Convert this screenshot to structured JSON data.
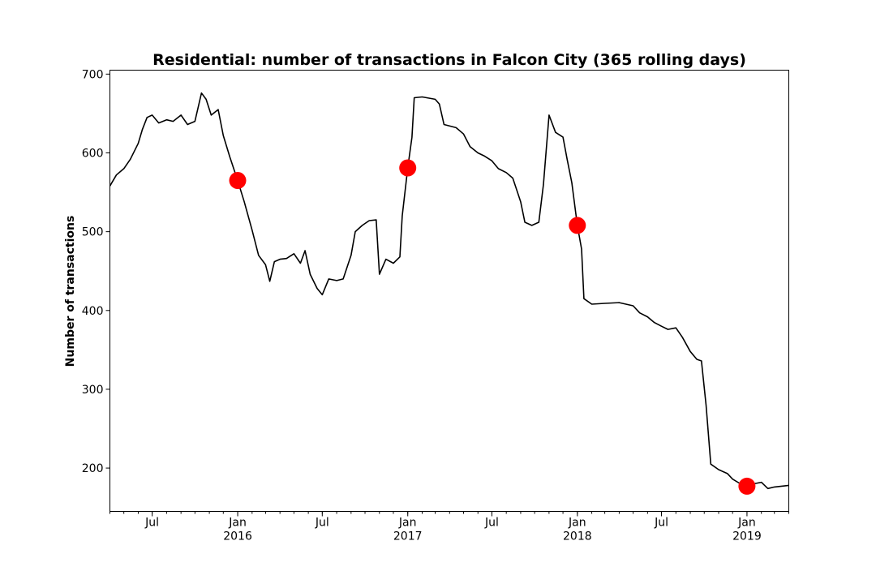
{
  "chart_data": {
    "type": "line",
    "title": "Residential: number of transactions in Falcon City (365 rolling days)",
    "xlabel": "",
    "ylabel": "Number of transactions",
    "xlim": [
      "2015-04-01",
      "2019-04-01"
    ],
    "ylim": [
      145,
      705
    ],
    "yticks": [
      200,
      300,
      400,
      500,
      600,
      700
    ],
    "xticks_major": [
      {
        "date": "2015-07-01",
        "label": "Jul",
        "year": ""
      },
      {
        "date": "2016-01-01",
        "label": "Jan",
        "year": "2016"
      },
      {
        "date": "2016-07-01",
        "label": "Jul",
        "year": ""
      },
      {
        "date": "2017-01-01",
        "label": "Jan",
        "year": "2017"
      },
      {
        "date": "2017-07-01",
        "label": "Jul",
        "year": ""
      },
      {
        "date": "2018-01-01",
        "label": "Jan",
        "year": "2018"
      },
      {
        "date": "2018-07-01",
        "label": "Jul",
        "year": ""
      },
      {
        "date": "2019-01-01",
        "label": "Jan",
        "year": "2019"
      }
    ],
    "grid": false,
    "series": [
      {
        "color": "#000000",
        "points": [
          [
            "2015-04-01",
            558
          ],
          [
            "2015-04-15",
            572
          ],
          [
            "2015-05-01",
            580
          ],
          [
            "2015-05-15",
            592
          ],
          [
            "2015-06-01",
            612
          ],
          [
            "2015-06-10",
            630
          ],
          [
            "2015-06-20",
            645
          ],
          [
            "2015-07-01",
            648
          ],
          [
            "2015-07-15",
            638
          ],
          [
            "2015-08-01",
            642
          ],
          [
            "2015-08-15",
            640
          ],
          [
            "2015-09-01",
            648
          ],
          [
            "2015-09-15",
            636
          ],
          [
            "2015-10-01",
            640
          ],
          [
            "2015-10-15",
            676
          ],
          [
            "2015-10-25",
            668
          ],
          [
            "2015-11-05",
            648
          ],
          [
            "2015-11-20",
            655
          ],
          [
            "2015-12-01",
            622
          ],
          [
            "2015-12-15",
            595
          ],
          [
            "2016-01-01",
            565
          ],
          [
            "2016-01-15",
            538
          ],
          [
            "2016-02-01",
            502
          ],
          [
            "2016-02-15",
            470
          ],
          [
            "2016-03-01",
            458
          ],
          [
            "2016-03-10",
            437
          ],
          [
            "2016-03-20",
            462
          ],
          [
            "2016-04-01",
            465
          ],
          [
            "2016-04-15",
            466
          ],
          [
            "2016-05-01",
            472
          ],
          [
            "2016-05-15",
            460
          ],
          [
            "2016-05-25",
            476
          ],
          [
            "2016-06-05",
            446
          ],
          [
            "2016-06-20",
            428
          ],
          [
            "2016-07-01",
            420
          ],
          [
            "2016-07-15",
            440
          ],
          [
            "2016-08-01",
            438
          ],
          [
            "2016-08-15",
            440
          ],
          [
            "2016-09-01",
            470
          ],
          [
            "2016-09-10",
            500
          ],
          [
            "2016-09-25",
            508
          ],
          [
            "2016-10-10",
            514
          ],
          [
            "2016-10-25",
            515
          ],
          [
            "2016-11-01",
            446
          ],
          [
            "2016-11-15",
            465
          ],
          [
            "2016-12-01",
            460
          ],
          [
            "2016-12-15",
            468
          ],
          [
            "2016-12-20",
            520
          ],
          [
            "2017-01-01",
            581
          ],
          [
            "2017-01-10",
            620
          ],
          [
            "2017-01-15",
            670
          ],
          [
            "2017-02-01",
            671
          ],
          [
            "2017-03-01",
            668
          ],
          [
            "2017-03-10",
            662
          ],
          [
            "2017-03-20",
            636
          ],
          [
            "2017-04-15",
            632
          ],
          [
            "2017-05-01",
            624
          ],
          [
            "2017-05-15",
            608
          ],
          [
            "2017-06-01",
            600
          ],
          [
            "2017-06-15",
            596
          ],
          [
            "2017-07-01",
            590
          ],
          [
            "2017-07-15",
            580
          ],
          [
            "2017-08-01",
            575
          ],
          [
            "2017-08-15",
            568
          ],
          [
            "2017-09-01",
            538
          ],
          [
            "2017-09-10",
            512
          ],
          [
            "2017-09-25",
            508
          ],
          [
            "2017-10-10",
            512
          ],
          [
            "2017-10-20",
            560
          ],
          [
            "2017-11-01",
            648
          ],
          [
            "2017-11-15",
            626
          ],
          [
            "2017-12-01",
            620
          ],
          [
            "2017-12-10",
            592
          ],
          [
            "2017-12-20",
            562
          ],
          [
            "2018-01-01",
            508
          ],
          [
            "2018-01-10",
            478
          ],
          [
            "2018-01-15",
            415
          ],
          [
            "2018-02-01",
            408
          ],
          [
            "2018-03-01",
            409
          ],
          [
            "2018-04-01",
            410
          ],
          [
            "2018-05-01",
            406
          ],
          [
            "2018-05-15",
            397
          ],
          [
            "2018-06-01",
            392
          ],
          [
            "2018-06-15",
            385
          ],
          [
            "2018-07-01",
            380
          ],
          [
            "2018-07-15",
            376
          ],
          [
            "2018-08-01",
            378
          ],
          [
            "2018-08-15",
            366
          ],
          [
            "2018-09-01",
            348
          ],
          [
            "2018-09-15",
            338
          ],
          [
            "2018-09-25",
            336
          ],
          [
            "2018-10-05",
            280
          ],
          [
            "2018-10-15",
            205
          ],
          [
            "2018-11-01",
            198
          ],
          [
            "2018-11-20",
            193
          ],
          [
            "2018-12-01",
            186
          ],
          [
            "2018-12-15",
            181
          ],
          [
            "2019-01-01",
            177
          ],
          [
            "2019-01-15",
            180
          ],
          [
            "2019-02-01",
            182
          ],
          [
            "2019-02-15",
            174
          ],
          [
            "2019-03-01",
            176
          ],
          [
            "2019-04-01",
            178
          ]
        ]
      }
    ],
    "markers": {
      "color": "#ff0000",
      "points": [
        [
          "2016-01-01",
          565
        ],
        [
          "2017-01-01",
          581
        ],
        [
          "2018-01-01",
          508
        ],
        [
          "2019-01-01",
          177
        ]
      ]
    }
  }
}
